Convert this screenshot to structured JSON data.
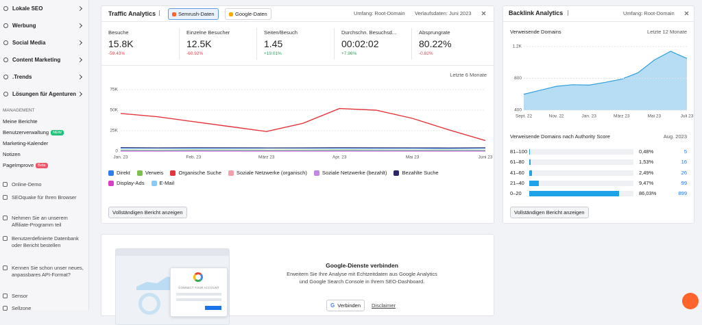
{
  "sidebar": {
    "nav": [
      "Lokale SEO",
      "Werbung",
      "Social Media",
      "Content Marketing",
      ".Trends",
      "Lösungen für Agenturen"
    ],
    "section": "MANAGEMENT",
    "management": [
      {
        "label": "Meine Berichte"
      },
      {
        "label": "Benutzerverwaltung",
        "badge": "NEW"
      },
      {
        "label": "Marketing-Kalender"
      },
      {
        "label": "Notizen"
      },
      {
        "label": "PageImprove",
        "badge": "Beta"
      }
    ],
    "extras": [
      "Online-Demo",
      "SEOquake für Ihren Browser",
      "Nehmen Sie an unserem Affiliate-Programm teil",
      "Benutzerdefinierte Datenbank oder Bericht bestellen",
      "Kennen Sie schon unser neues, anpassbares API-Format?",
      "Sensor",
      "Sellzone"
    ]
  },
  "traffic": {
    "title": "Traffic Analytics",
    "tabs": [
      "Semrush-Daten",
      "Google-Daten"
    ],
    "scope": "Umfang: Root-Domain",
    "history": "Verlaufsdaten: Juni 2023",
    "metrics": [
      {
        "label": "Besuche",
        "value": "15.8K",
        "change": "-59.43%"
      },
      {
        "label": "Einzelne Besucher",
        "value": "12.5K",
        "change": "-60.92%"
      },
      {
        "label": "Seiten/Besuch",
        "value": "1.45",
        "change": "+19.01%"
      },
      {
        "label": "Durchschn. Besuchsd...",
        "value": "00:02:02",
        "change": "+7.96%"
      },
      {
        "label": "Absprungrate",
        "value": "80.22%",
        "change": "-0.82%"
      }
    ],
    "period": "Letzte 6 Monate",
    "chart": {
      "type": "line",
      "categories": [
        "Jan. 23",
        null,
        "Feb. 23",
        null,
        "März 23",
        null,
        "Apr. 23",
        null,
        "Mai 23",
        null,
        "Juni 23"
      ],
      "ylim": [
        0,
        75000
      ],
      "yticks": [
        0,
        {
          "value": 25000,
          "label": "25K"
        },
        {
          "value": 50000,
          "label": "50K"
        },
        {
          "value": 75000,
          "label": "75K"
        }
      ],
      "grid": true,
      "series": [
        {
          "name": "Direkt",
          "color": "#2d7ff0",
          "values": [
            3500,
            3600,
            3400,
            3500,
            3700,
            3600,
            3500,
            3400,
            3500,
            3300,
            3600
          ]
        },
        {
          "name": "Verweis",
          "color": "#7cc24a",
          "values": [
            1500,
            1400,
            1600,
            1500,
            1400,
            1500,
            1600,
            1500,
            1400,
            1500,
            1400
          ]
        },
        {
          "name": "Organische Suche",
          "color": "#e5353b",
          "values": [
            46000,
            42000,
            36000,
            30000,
            24000,
            34000,
            52000,
            50000,
            40000,
            26000,
            13000
          ]
        },
        {
          "name": "Soziale Netzwerke (organisch)",
          "color": "#f2a1a8",
          "values": [
            300,
            300,
            300,
            300,
            300,
            300,
            300,
            300,
            300,
            300,
            300
          ]
        },
        {
          "name": "Soziale Netzwerke (bezahlt)",
          "color": "#c585e0",
          "values": [
            200,
            200,
            200,
            200,
            200,
            200,
            200,
            200,
            200,
            200,
            200
          ]
        },
        {
          "name": "Bezahlte Suche",
          "color": "#2a2868",
          "values": [
            4500,
            4200,
            4400,
            4300,
            4100,
            4200,
            4400,
            4300,
            4200,
            4100,
            4300
          ]
        },
        {
          "name": "Display-Ads",
          "color": "#d93fc1",
          "values": [
            100,
            100,
            100,
            100,
            100,
            100,
            100,
            100,
            100,
            100,
            100
          ]
        },
        {
          "name": "E-Mail",
          "color": "#8cc8f4",
          "values": [
            800,
            800,
            800,
            800,
            800,
            800,
            800,
            800,
            800,
            800,
            800
          ]
        }
      ]
    },
    "button": "Vollständigen Bericht anzeigen"
  },
  "backlinks": {
    "title": "Backlink Analytics",
    "scope": "Umfang: Root-Domain",
    "subtitle": "Verweisende Domains",
    "period": "Letzte 12 Monate",
    "chart": {
      "type": "area",
      "categories": [
        "Sept. 22",
        null,
        "Nov. 22",
        null,
        "Jan. 23",
        null,
        "März 23",
        null,
        "Mai 23",
        null,
        "Juli 23"
      ],
      "values": [
        600,
        650,
        700,
        720,
        715,
        750,
        790,
        870,
        1030,
        1140,
        1050
      ],
      "color": "#2f9fe0",
      "ylim": [
        400,
        1200
      ],
      "yticks": [
        400,
        800,
        {
          "value": 1200,
          "label": "1.2K"
        }
      ],
      "grid": true
    },
    "authority": {
      "title": "Verweisende Domains nach Authority Score",
      "date": "Aug. 2023",
      "categories": [
        "81–100",
        "61–80",
        "41–60",
        "21–40",
        "0–20"
      ],
      "values": [
        0.48,
        1.53,
        2.49,
        9.47,
        86.03
      ],
      "value_labels": [
        "0,48%",
        "1,53%",
        "2,49%",
        "9,47%",
        "86,03%"
      ],
      "counts": [
        5,
        16,
        26,
        99,
        899
      ],
      "xlim": [
        0,
        100
      ],
      "color": "#1ea3e8"
    },
    "button": "Vollständigen Bericht anzeigen"
  },
  "google": {
    "title": "Google-Dienste verbinden",
    "description": "Erweitern Sie Ihre Analyse mit Echtzeitdaten aus Google Analytics und Google Search Console in Ihrem SEO-Dashboard.",
    "connect": "Verbinden",
    "disclaimer": "Disclaimer",
    "illustration_text": "CONNECT YOUR ACCOUNT"
  }
}
